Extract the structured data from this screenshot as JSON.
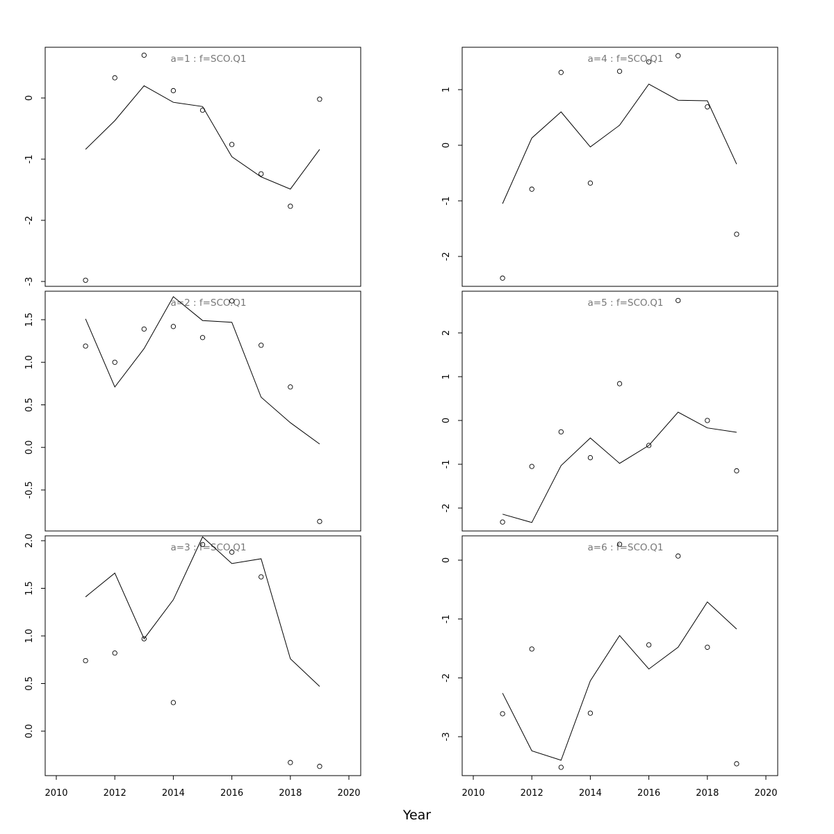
{
  "figure": {
    "xlabel": "Year"
  },
  "chart_data": [
    {
      "type": "line",
      "title": "a=1 : f=SCO.Q1",
      "x": [
        2011,
        2012,
        2013,
        2014,
        2015,
        2016,
        2017,
        2018,
        2019
      ],
      "line_values": [
        -0.84,
        -0.37,
        0.2,
        -0.07,
        -0.14,
        -0.96,
        -1.29,
        -1.49,
        -0.84
      ],
      "point_values": [
        -2.98,
        0.33,
        0.7,
        0.12,
        -0.2,
        -0.76,
        -1.24,
        -1.77,
        -0.02
      ],
      "xlim": [
        2010,
        2020
      ],
      "ylim": [
        -3,
        0
      ],
      "yticks": [
        -3,
        -2,
        -1,
        0
      ],
      "ytick_labels": [
        "-3",
        "-2",
        "-1",
        "0"
      ],
      "xticks": [],
      "xtick_labels": []
    },
    {
      "type": "line",
      "title": "a=2 : f=SCO.Q1",
      "x": [
        2011,
        2012,
        2013,
        2014,
        2015,
        2016,
        2017,
        2018,
        2019
      ],
      "line_values": [
        1.51,
        0.71,
        1.16,
        1.77,
        1.49,
        1.47,
        0.59,
        0.29,
        0.04
      ],
      "point_values": [
        1.19,
        1.0,
        1.39,
        1.42,
        1.29,
        1.72,
        1.2,
        0.71,
        -0.87
      ],
      "xlim": [
        2010,
        2020
      ],
      "ylim": [
        -0.5,
        1.5
      ],
      "yticks": [
        -0.5,
        0.0,
        0.5,
        1.0,
        1.5
      ],
      "ytick_labels": [
        "-0.5",
        "0.0",
        "0.5",
        "1.0",
        "1.5"
      ],
      "xticks": [],
      "xtick_labels": []
    },
    {
      "type": "line",
      "title": "a=3 : f=SCO.Q1",
      "x": [
        2011,
        2012,
        2013,
        2014,
        2015,
        2016,
        2017,
        2018,
        2019
      ],
      "line_values": [
        1.41,
        1.66,
        0.97,
        1.38,
        2.04,
        1.76,
        1.81,
        0.76,
        0.47
      ],
      "point_values": [
        0.74,
        0.82,
        0.97,
        0.3,
        1.96,
        1.88,
        1.62,
        -0.33,
        -0.37
      ],
      "xlim": [
        2010,
        2020
      ],
      "ylim": [
        0.0,
        2.0
      ],
      "yticks": [
        0.0,
        0.5,
        1.0,
        1.5,
        2.0
      ],
      "ytick_labels": [
        "0.0",
        "0.5",
        "1.0",
        "1.5",
        "2.0"
      ],
      "xticks": [
        2010,
        2012,
        2014,
        2016,
        2018,
        2020
      ],
      "xtick_labels": [
        "2010",
        "2012",
        "2014",
        "2016",
        "2018",
        "2020"
      ]
    },
    {
      "type": "line",
      "title": "a=4 : f=SCO.Q1",
      "x": [
        2011,
        2012,
        2013,
        2014,
        2015,
        2016,
        2017,
        2018,
        2019
      ],
      "line_values": [
        -1.05,
        0.13,
        0.6,
        -0.03,
        0.36,
        1.1,
        0.81,
        0.8,
        -0.34
      ],
      "point_values": [
        -2.39,
        -0.79,
        1.31,
        -0.68,
        1.33,
        1.5,
        1.61,
        0.69,
        -1.6
      ],
      "xlim": [
        2010,
        2020
      ],
      "ylim": [
        -2,
        1
      ],
      "yticks": [
        -2,
        -1,
        0,
        1
      ],
      "ytick_labels": [
        "-2",
        "-1",
        "0",
        "1"
      ],
      "xticks": [],
      "xtick_labels": []
    },
    {
      "type": "line",
      "title": "a=5 : f=SCO.Q1",
      "x": [
        2011,
        2012,
        2013,
        2014,
        2015,
        2016,
        2017,
        2018,
        2019
      ],
      "line_values": [
        -2.14,
        -2.33,
        -1.03,
        -0.4,
        -0.98,
        -0.57,
        0.19,
        -0.17,
        -0.27
      ],
      "point_values": [
        -2.32,
        -1.05,
        -0.26,
        -0.85,
        0.84,
        -0.57,
        2.74,
        0.0,
        -1.15
      ],
      "xlim": [
        2010,
        2020
      ],
      "ylim": [
        -2,
        2
      ],
      "yticks": [
        -2,
        -1,
        0,
        1,
        2
      ],
      "ytick_labels": [
        "-2",
        "-1",
        "0",
        "1",
        "2"
      ],
      "xticks": [],
      "xtick_labels": []
    },
    {
      "type": "line",
      "title": "a=6 : f=SCO.Q1",
      "x": [
        2011,
        2012,
        2013,
        2014,
        2015,
        2016,
        2017,
        2018,
        2019
      ],
      "line_values": [
        -2.26,
        -3.24,
        -3.4,
        -2.05,
        -1.28,
        -1.85,
        -1.48,
        -0.71,
        -1.17
      ],
      "point_values": [
        -2.61,
        -1.51,
        -3.52,
        -2.6,
        0.27,
        -1.44,
        0.07,
        -1.48,
        -3.46
      ],
      "xlim": [
        2010,
        2020
      ],
      "ylim": [
        -3,
        0
      ],
      "yticks": [
        -3,
        -2,
        -1,
        0
      ],
      "ytick_labels": [
        "-3",
        "-2",
        "-1",
        "0"
      ],
      "xticks": [
        2010,
        2012,
        2014,
        2016,
        2018,
        2020
      ],
      "xtick_labels": [
        "2010",
        "2012",
        "2014",
        "2016",
        "2018",
        "2020"
      ]
    }
  ]
}
